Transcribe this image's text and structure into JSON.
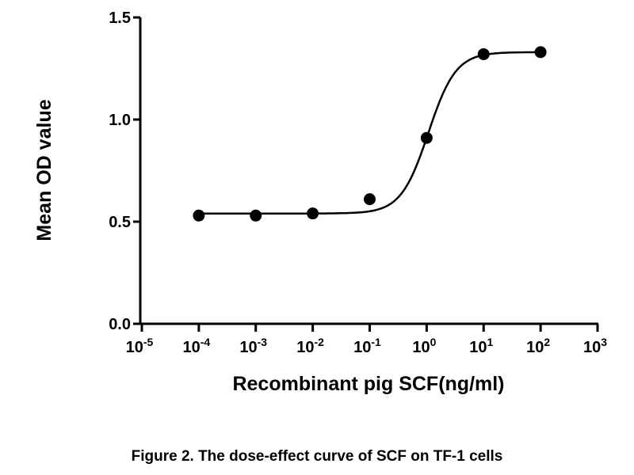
{
  "chart_data": {
    "type": "scatter",
    "title": "",
    "xlabel": "Recombinant pig SCF(ng/ml)",
    "ylabel": "Mean OD value",
    "xscale": "log10",
    "xlim_log10": [
      -5,
      3
    ],
    "ylim": [
      0,
      1.5
    ],
    "x_ticks": [
      {
        "base": "10",
        "exp": "-5"
      },
      {
        "base": "10",
        "exp": "-4"
      },
      {
        "base": "10",
        "exp": "-3"
      },
      {
        "base": "10",
        "exp": "-2"
      },
      {
        "base": "10",
        "exp": "-1"
      },
      {
        "base": "10",
        "exp": "0"
      },
      {
        "base": "10",
        "exp": "1"
      },
      {
        "base": "10",
        "exp": "2"
      },
      {
        "base": "10",
        "exp": "3"
      }
    ],
    "y_ticks": [
      "0.0",
      "0.5",
      "1.0",
      "1.5"
    ],
    "y_tick_values": [
      0,
      0.5,
      1.0,
      1.5
    ],
    "grid": false,
    "series": [
      {
        "name": "data",
        "x": [
          0.0001,
          0.001,
          0.01,
          0.1,
          1,
          10,
          100
        ],
        "y": [
          0.53,
          0.53,
          0.54,
          0.61,
          0.91,
          1.32,
          1.33
        ]
      }
    ],
    "fit": {
      "model": "sigmoidal dose-response",
      "bottom": 0.54,
      "top": 1.33,
      "log_ec50": 0.03,
      "hill": 1.8,
      "x_range_log10": [
        -4,
        2
      ]
    },
    "point_color": "#000000"
  },
  "caption": "Figure 2. The dose-effect curve of SCF on TF-1 cells"
}
